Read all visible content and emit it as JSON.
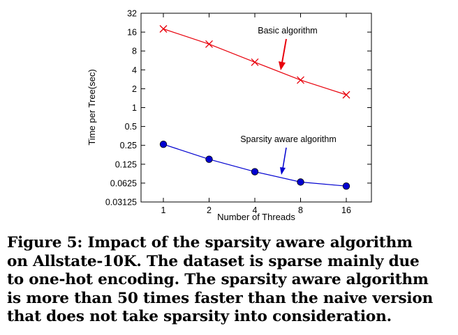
{
  "chart_data": {
    "type": "line",
    "title": "",
    "xlabel": "Number of Threads",
    "ylabel": "Time per Tree(sec)",
    "x": [
      1,
      2,
      4,
      8,
      16
    ],
    "xticks": [
      "1",
      "2",
      "4",
      "8",
      "16"
    ],
    "yscale": "log2",
    "ylim": [
      0.03125,
      32
    ],
    "yticks": [
      "0.03125",
      "0.0625",
      "0.125",
      "0.25",
      "0.5",
      "1",
      "2",
      "4",
      "8",
      "16",
      "32"
    ],
    "series": [
      {
        "name": "Basic algorithm",
        "values": [
          18,
          10.3,
          5.3,
          2.75,
          1.6
        ],
        "color": "#e8000b",
        "marker": "x"
      },
      {
        "name": "Sparsity aware algorithm",
        "values": [
          0.26,
          0.15,
          0.095,
          0.065,
          0.056
        ],
        "color": "#0000d0",
        "marker": "circle"
      }
    ],
    "annotations": [
      "Basic algorithm",
      "Sparsity aware algorithm"
    ],
    "grid": false
  },
  "caption": {
    "lines": [
      "Figure 5: Impact of the sparsity aware algorithm",
      "on Allstate-10K. The dataset is sparse mainly due",
      "to one-hot encoding. The sparsity aware algorithm",
      "is more than 50 times faster than the naive version",
      "that does not take sparsity into consideration."
    ]
  }
}
